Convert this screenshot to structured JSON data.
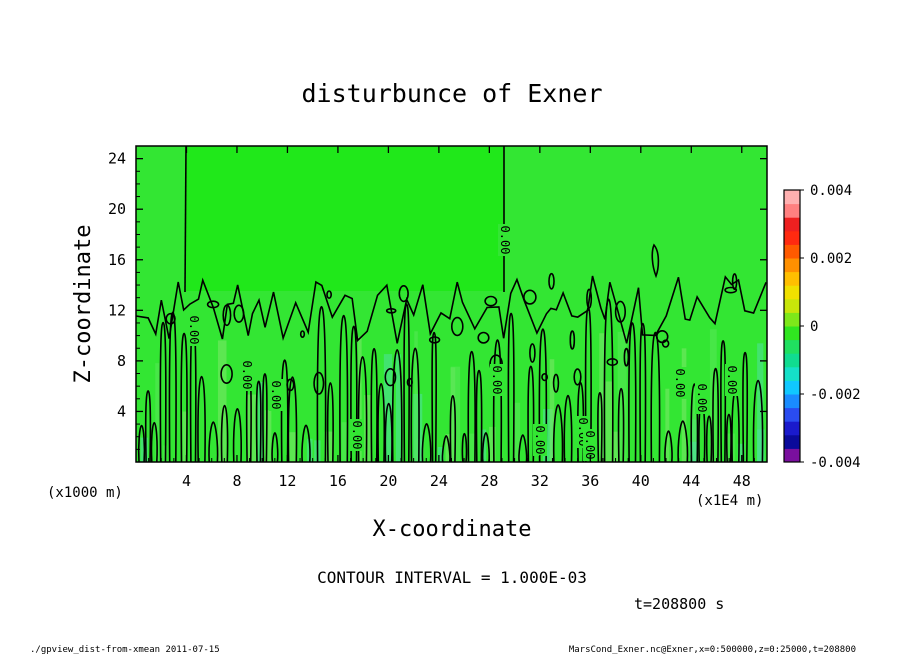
{
  "chart_data": {
    "type": "heatmap",
    "title": "disturbunce of Exner",
    "xlabel": "X-coordinate",
    "ylabel": "Z-coordinate",
    "x_ticks": [
      4,
      8,
      12,
      16,
      20,
      24,
      28,
      32,
      36,
      40,
      44,
      48
    ],
    "y_ticks": [
      4,
      8,
      12,
      16,
      20,
      24
    ],
    "xlim": [
      0,
      50
    ],
    "ylim": [
      0,
      25
    ],
    "y_unit": "(x1000 m)",
    "x_unit": "(x1E4 m)",
    "colorbar": {
      "range": [
        -0.004,
        0.004
      ],
      "tick_labels": [
        "0.004",
        "0.002",
        "0",
        "-0.002",
        "-0.004"
      ],
      "tick_values": [
        0.004,
        0.002,
        0,
        -0.002,
        -0.004
      ],
      "colors": [
        "#7a0f9e",
        "#0a0a9a",
        "#1a1acc",
        "#2a4cf0",
        "#1a8cff",
        "#10c8ff",
        "#15e0c8",
        "#10dc90",
        "#20e060",
        "#30e620",
        "#7ee81a",
        "#c8e60a",
        "#f0e000",
        "#ffbf00",
        "#ff9000",
        "#ff5a00",
        "#ff2a10",
        "#ee2020",
        "#ff8080",
        "#ffb0b0"
      ]
    },
    "background_color": "#33e633",
    "upper_left_color": "#20e81a",
    "contour_interval_value": 0.001,
    "contour_labels": [
      "0.00",
      "0.00",
      "0.00",
      "0.00",
      "0.00",
      "0.00",
      "0.00",
      "0.00",
      "0.00",
      "0.00",
      "0.00",
      "0.00"
    ]
  },
  "contour_interval_text": "CONTOUR INTERVAL = 1.000E-03",
  "time_text": "t=208800 s",
  "footer_left": "./gpview_dist-from-xmean  2011-07-15",
  "footer_right": "MarsCond_Exner.nc@Exner,x=0:500000,z=0:25000,t=208800"
}
